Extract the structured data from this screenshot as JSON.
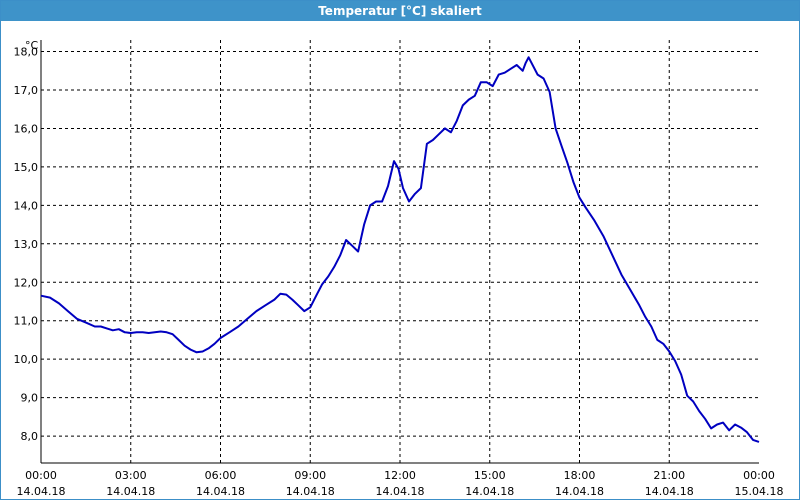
{
  "window": {
    "title": "Temperatur [°C] skaliert"
  },
  "chart_data": {
    "type": "line",
    "title": "Temperatur [°C] skaliert",
    "ylabel": "°C",
    "xlabel": "",
    "ylim": [
      7.3,
      18.3
    ],
    "xlim_hours": [
      0,
      24
    ],
    "grid": true,
    "y_ticks": [
      "8,0",
      "9,0",
      "10,0",
      "11,0",
      "12,0",
      "13,0",
      "14,0",
      "15,0",
      "16,0",
      "17,0",
      "18,0"
    ],
    "x_ticks": [
      {
        "time": "00:00",
        "date": "14.04.18"
      },
      {
        "time": "03:00",
        "date": "14.04.18"
      },
      {
        "time": "06:00",
        "date": "14.04.18"
      },
      {
        "time": "09:00",
        "date": "14.04.18"
      },
      {
        "time": "12:00",
        "date": "14.04.18"
      },
      {
        "time": "15:00",
        "date": "14.04.18"
      },
      {
        "time": "18:00",
        "date": "14.04.18"
      },
      {
        "time": "21:00",
        "date": "14.04.18"
      },
      {
        "time": "00:00",
        "date": "15.04.18"
      }
    ],
    "line_color": "#0000c0",
    "series": [
      {
        "x_hours": [
          0,
          0.3,
          0.6,
          0.9,
          1.2,
          1.5,
          1.8,
          2.0,
          2.2,
          2.4,
          2.6,
          2.8,
          3.0,
          3.2,
          3.4,
          3.6,
          3.8,
          4.0,
          4.2,
          4.4,
          4.6,
          4.8,
          5.0,
          5.2,
          5.4,
          5.6,
          5.8,
          6.0,
          6.3,
          6.6,
          6.9,
          7.2,
          7.5,
          7.8,
          8.0,
          8.2,
          8.4,
          8.6,
          8.8,
          9.0,
          9.2,
          9.4,
          9.6,
          9.8,
          10.0,
          10.2,
          10.4,
          10.6,
          10.8,
          11.0,
          11.2,
          11.4,
          11.6,
          11.8,
          11.95,
          12.1,
          12.3,
          12.5,
          12.7,
          12.9,
          13.1,
          13.3,
          13.5,
          13.7,
          13.9,
          14.1,
          14.3,
          14.5,
          14.7,
          14.9,
          15.1,
          15.3,
          15.5,
          15.7,
          15.9,
          16.1,
          16.2,
          16.3,
          16.4,
          16.6,
          16.8,
          17.0,
          17.2,
          17.4,
          17.6,
          17.8,
          18.0,
          18.2,
          18.5,
          18.8,
          19.1,
          19.4,
          19.7,
          20.0,
          20.2,
          20.4,
          20.6,
          20.8,
          21.0,
          21.2,
          21.4,
          21.6,
          21.8,
          22.0,
          22.2,
          22.4,
          22.6,
          22.8,
          23.0,
          23.2,
          23.4,
          23.6,
          23.8,
          24.0
        ],
        "y": [
          11.65,
          11.6,
          11.45,
          11.25,
          11.05,
          10.95,
          10.85,
          10.85,
          10.8,
          10.75,
          10.78,
          10.7,
          10.68,
          10.7,
          10.7,
          10.68,
          10.7,
          10.72,
          10.7,
          10.65,
          10.5,
          10.35,
          10.25,
          10.18,
          10.2,
          10.28,
          10.4,
          10.55,
          10.7,
          10.85,
          11.05,
          11.25,
          11.4,
          11.55,
          11.7,
          11.68,
          11.55,
          11.4,
          11.25,
          11.35,
          11.65,
          11.95,
          12.15,
          12.4,
          12.7,
          13.1,
          12.95,
          12.8,
          13.5,
          14.0,
          14.1,
          14.1,
          14.5,
          15.15,
          14.95,
          14.45,
          14.1,
          14.3,
          14.45,
          15.6,
          15.7,
          15.85,
          16.0,
          15.9,
          16.2,
          16.6,
          16.75,
          16.85,
          17.2,
          17.2,
          17.1,
          17.4,
          17.45,
          17.55,
          17.65,
          17.5,
          17.7,
          17.85,
          17.7,
          17.4,
          17.3,
          16.95,
          16.0,
          15.55,
          15.1,
          14.6,
          14.2,
          13.95,
          13.6,
          13.2,
          12.7,
          12.2,
          11.8,
          11.4,
          11.1,
          10.85,
          10.5,
          10.4,
          10.2,
          9.95,
          9.6,
          9.05,
          8.9,
          8.65,
          8.45,
          8.2,
          8.3,
          8.35,
          8.15,
          8.3,
          8.22,
          8.1,
          7.9,
          7.85
        ]
      }
    ]
  }
}
